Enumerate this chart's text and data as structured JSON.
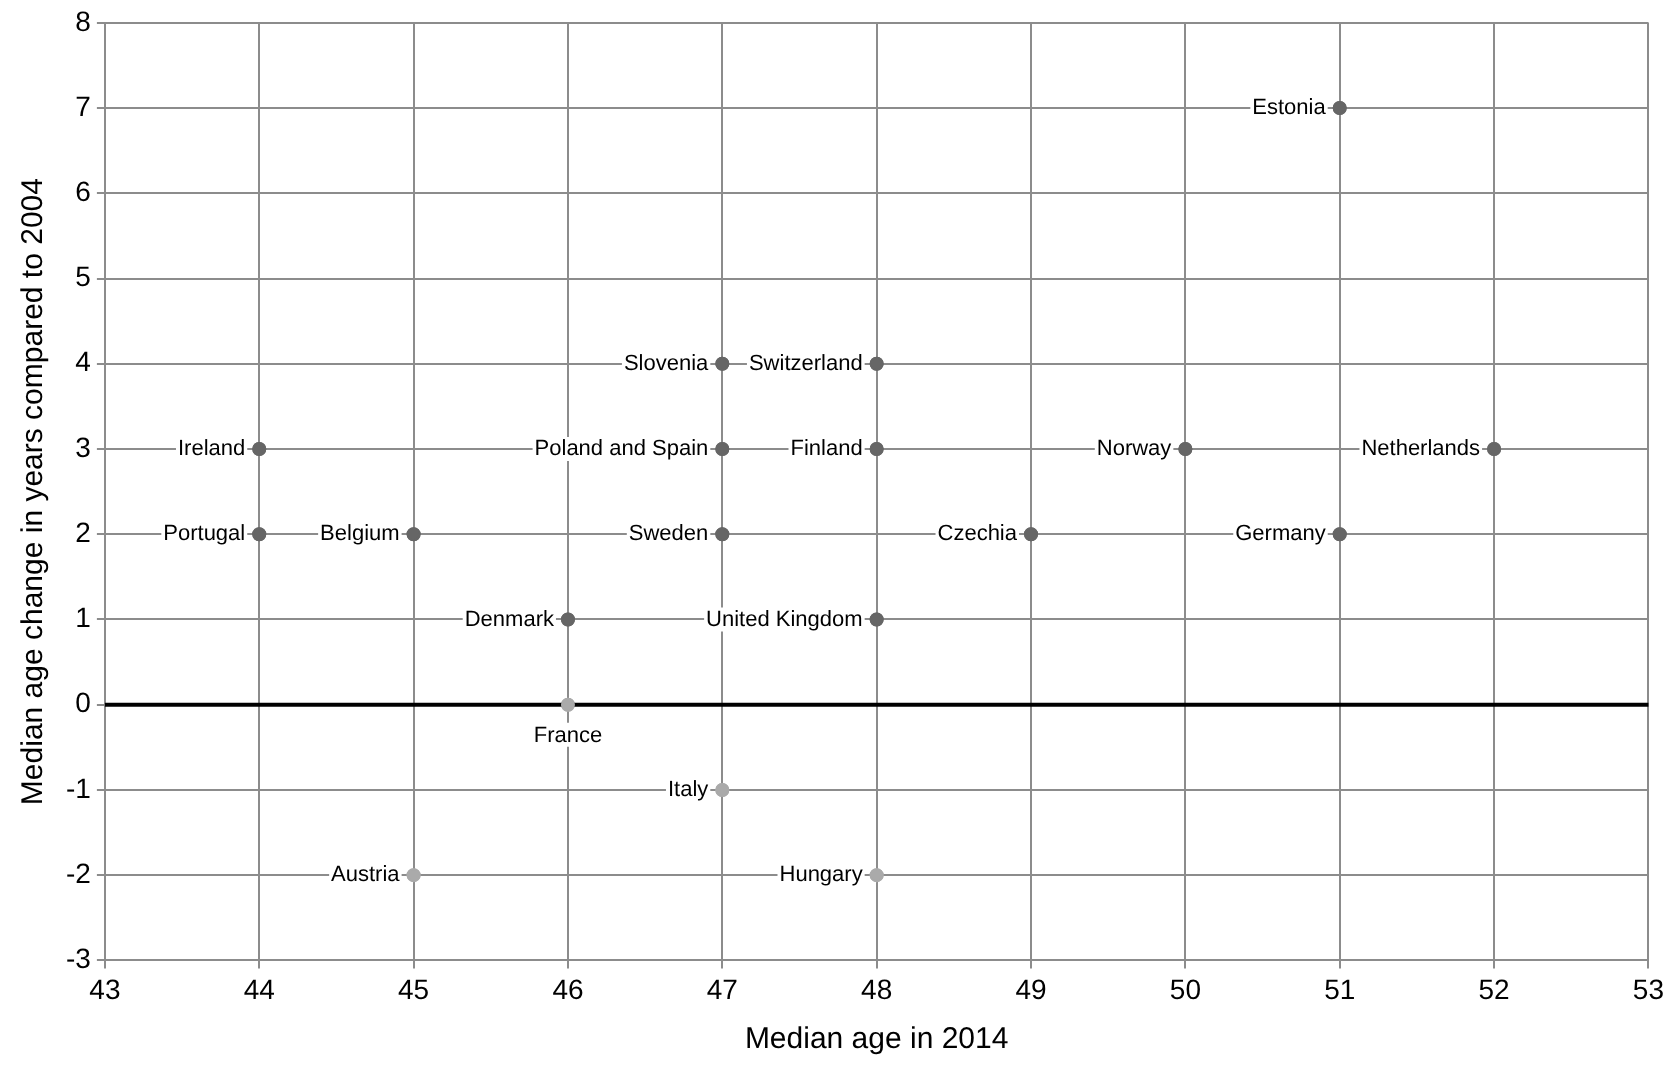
{
  "chart_data": {
    "type": "scatter",
    "xlabel": "Median age in 2014",
    "ylabel": "Median age change in years compared to 2004",
    "series": [
      {
        "type": "scatter",
        "x": [
          51,
          47,
          48,
          44,
          47,
          48,
          50,
          52,
          44,
          45,
          47,
          49,
          51,
          46,
          48,
          46,
          47,
          45,
          48
        ],
        "values": [
          7,
          4,
          4,
          3,
          3,
          3,
          3,
          3,
          2,
          2,
          2,
          2,
          2,
          1,
          1,
          0,
          -1,
          -2,
          -2
        ],
        "colors": [
          "#666666",
          "#666666",
          "#666666",
          "#666666",
          "#666666",
          "#666666",
          "#666666",
          "#666666",
          "#666666",
          "#666666",
          "#666666",
          "#666666",
          "#666666",
          "#666666",
          "#666666",
          "#aaaaaa",
          "#aaaaaa",
          "#aaaaaa",
          "#aaaaaa"
        ]
      }
    ],
    "annotations": [
      {
        "text": "Estonia",
        "x": 51,
        "y": 7
      },
      {
        "text": "Slovenia",
        "x": 47,
        "y": 4
      },
      {
        "text": "Switzerland",
        "x": 48,
        "y": 4
      },
      {
        "text": "Ireland",
        "x": 44,
        "y": 3
      },
      {
        "text": "Poland and Spain",
        "x": 47,
        "y": 3
      },
      {
        "text": "Finland",
        "x": 48,
        "y": 3
      },
      {
        "text": "Norway",
        "x": 50,
        "y": 3
      },
      {
        "text": "Netherlands",
        "x": 52,
        "y": 3
      },
      {
        "text": "Portugal",
        "x": 44,
        "y": 2
      },
      {
        "text": "Belgium",
        "x": 45,
        "y": 2
      },
      {
        "text": "Sweden",
        "x": 47,
        "y": 2
      },
      {
        "text": "Czechia",
        "x": 49,
        "y": 2
      },
      {
        "text": "Germany",
        "x": 51,
        "y": 2
      },
      {
        "text": "Denmark",
        "x": 46,
        "y": 1
      },
      {
        "text": "United Kingdom",
        "x": 48,
        "y": 1
      },
      {
        "text": "France",
        "x": 46,
        "y": 0
      },
      {
        "text": "Italy",
        "x": 47,
        "y": -1
      },
      {
        "text": "Austria",
        "x": 45,
        "y": -2
      },
      {
        "text": "Hungary",
        "x": 48,
        "y": -2
      }
    ],
    "ref_lines": [
      {
        "axis": "y",
        "value": 0,
        "color": "#000000"
      }
    ],
    "xlim": [
      43,
      53
    ],
    "xticks": [
      43,
      44,
      45,
      46,
      47,
      48,
      49,
      50,
      51,
      52,
      53
    ],
    "ylim": [
      -3,
      8
    ],
    "yticks": [
      -3,
      -2,
      -1,
      0,
      1,
      2,
      3,
      4,
      5,
      6,
      7,
      8
    ],
    "grid": true,
    "legend": false,
    "marker": "circle"
  }
}
